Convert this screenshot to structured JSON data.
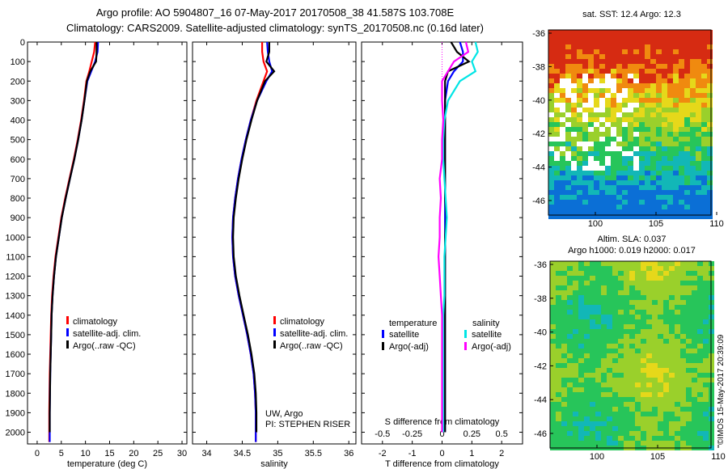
{
  "header": {
    "line1": "Argo profile: AO 5904807_16 07-May-2017 20170508_38 41.587S 103.708E",
    "line2": "Climatology: CARS2009. Satellite-adjusted climatology: synTS_20170508.nc (0.16d later)"
  },
  "credit": {
    "line1": "UW, Argo",
    "line2": "PI: STEPHEN RISER"
  },
  "stamp": "©IMOS 15-May-2017 20:39:09",
  "sst_map": {
    "title": "sat. SST: 12.4 Argo: 12.3",
    "lat_ticks": [
      "-36",
      "-38",
      "-40",
      "-42",
      "-44",
      "-46"
    ],
    "lon_ticks": [
      "100",
      "105",
      "110"
    ]
  },
  "sla_map": {
    "title1": "Altim. SLA: 0.037",
    "title2": "Argo h1000: 0.019 h2000: 0.017",
    "lat_ticks": [
      "-36",
      "-38",
      "-40",
      "-42",
      "-44",
      "-46"
    ],
    "lon_ticks": [
      "100",
      "105",
      "110"
    ]
  },
  "colors": {
    "climatology": "#ff0000",
    "satellite": "#0000ff",
    "argo": "#000000",
    "sal_satellite": "#00e5e5",
    "sal_argo": "#ff00ff"
  },
  "chart_data": [
    {
      "type": "line",
      "panel": "temperature",
      "title": "",
      "xlabel": "temperature (deg C)",
      "ylabel": "",
      "xlim": [
        -2,
        31
      ],
      "ylim": [
        2060,
        0
      ],
      "xticks": [
        0,
        5,
        10,
        15,
        20,
        25,
        30
      ],
      "yticks": [
        0,
        100,
        200,
        300,
        400,
        500,
        600,
        700,
        800,
        900,
        1000,
        1100,
        1200,
        1300,
        1400,
        1500,
        1600,
        1700,
        1800,
        1900,
        2000
      ],
      "legend_position": "lower-middle",
      "series": [
        {
          "name": "climatology",
          "color": "red",
          "x": [
            12.0,
            11.8,
            11.3,
            10.8,
            10.2,
            9.7,
            9.1,
            8.4,
            7.6,
            6.7,
            5.8,
            5.0,
            4.4,
            3.8,
            3.4,
            3.1,
            2.9,
            2.8,
            2.7,
            2.6,
            2.55,
            2.5,
            2.5
          ],
          "depth": [
            0,
            50,
            100,
            150,
            200,
            300,
            400,
            500,
            600,
            700,
            800,
            900,
            1000,
            1100,
            1200,
            1300,
            1400,
            1500,
            1600,
            1700,
            1800,
            1900,
            2050
          ]
        },
        {
          "name": "satellite-adj. clim.",
          "color": "blue",
          "x": [
            12.6,
            12.5,
            12.0,
            11.2,
            10.4,
            9.8,
            9.2,
            8.5,
            7.7,
            6.8,
            5.9,
            5.1,
            4.5,
            3.9,
            3.5,
            3.2,
            3.0,
            2.9,
            2.8,
            2.7,
            2.65,
            2.6,
            2.6
          ],
          "depth": [
            0,
            50,
            100,
            150,
            200,
            300,
            400,
            500,
            600,
            700,
            800,
            900,
            1000,
            1100,
            1200,
            1300,
            1400,
            1500,
            1600,
            1700,
            1800,
            1900,
            2050
          ]
        },
        {
          "name": "Argo(..raw -QC)",
          "color": "black",
          "x": [
            12.3,
            12.3,
            12.2,
            11.0,
            10.3,
            9.8,
            9.2,
            8.5,
            7.7,
            6.8,
            5.9,
            5.1,
            4.5,
            3.9,
            3.5,
            3.2,
            3.0,
            2.9,
            2.8,
            2.7,
            2.65,
            2.6,
            2.6
          ],
          "depth": [
            0,
            50,
            100,
            150,
            200,
            300,
            400,
            500,
            600,
            700,
            800,
            900,
            1000,
            1100,
            1200,
            1300,
            1400,
            1500,
            1600,
            1700,
            1800,
            1900,
            2000
          ]
        }
      ]
    },
    {
      "type": "line",
      "panel": "salinity",
      "title": "",
      "xlabel": "salinity",
      "ylabel": "",
      "xlim": [
        33.8,
        36.1
      ],
      "ylim": [
        2060,
        0
      ],
      "xticks": [
        34,
        34.5,
        35,
        35.5,
        36
      ],
      "legend_position": "lower-right",
      "series": [
        {
          "name": "climatology",
          "color": "red",
          "x": [
            34.78,
            34.78,
            34.8,
            34.85,
            34.8,
            34.7,
            34.62,
            34.55,
            34.49,
            34.44,
            34.4,
            34.37,
            34.36,
            34.37,
            34.4,
            34.45,
            34.51,
            34.57,
            34.62,
            34.66,
            34.68,
            34.69,
            34.69
          ],
          "depth": [
            0,
            50,
            100,
            150,
            200,
            300,
            400,
            500,
            600,
            700,
            800,
            900,
            1000,
            1100,
            1200,
            1300,
            1400,
            1500,
            1600,
            1700,
            1800,
            1900,
            2050
          ]
        },
        {
          "name": "satellite-adj. clim.",
          "color": "blue",
          "x": [
            34.85,
            34.86,
            34.88,
            34.92,
            34.84,
            34.71,
            34.62,
            34.55,
            34.49,
            34.44,
            34.4,
            34.37,
            34.36,
            34.37,
            34.4,
            34.45,
            34.51,
            34.57,
            34.62,
            34.66,
            34.68,
            34.69,
            34.69
          ],
          "depth": [
            0,
            50,
            100,
            150,
            200,
            300,
            400,
            500,
            600,
            700,
            800,
            900,
            1000,
            1100,
            1200,
            1300,
            1400,
            1500,
            1600,
            1700,
            1800,
            1900,
            2050
          ]
        },
        {
          "name": "Argo(..raw -QC)",
          "color": "black",
          "x": [
            34.88,
            34.88,
            34.84,
            34.95,
            34.82,
            34.71,
            34.63,
            34.56,
            34.5,
            34.45,
            34.41,
            34.38,
            34.37,
            34.38,
            34.41,
            34.46,
            34.52,
            34.58,
            34.63,
            34.67,
            34.69,
            34.7,
            34.7
          ],
          "depth": [
            0,
            50,
            100,
            150,
            200,
            300,
            400,
            500,
            600,
            700,
            800,
            900,
            1000,
            1100,
            1200,
            1300,
            1400,
            1500,
            1600,
            1700,
            1800,
            1900,
            2000
          ]
        }
      ]
    },
    {
      "type": "line",
      "panel": "difference",
      "title": "",
      "xlabel": "T difference from climatology",
      "xlabel_top": "S difference from climatology",
      "ylabel": "",
      "xlim": [
        -2.7,
        2.7
      ],
      "ylim": [
        2060,
        0
      ],
      "xticks": [
        -2,
        -1,
        0,
        1,
        2
      ],
      "xticks_top": [
        -0.5,
        -0.25,
        0,
        0.25,
        0.5
      ],
      "legend_temperature_title": "temperature",
      "legend_salinity_title": "salinity",
      "legend_position": "middle",
      "series": [
        {
          "name": "satellite",
          "group": "temperature",
          "color": "blue",
          "x": [
            0.6,
            0.7,
            0.7,
            0.4,
            0.2,
            0.1,
            0.1,
            0.1,
            0.1,
            0.1,
            0.1,
            0.1,
            0.1,
            0.1,
            0.1,
            0.1,
            0.1,
            0.1,
            0.1,
            0.1,
            0.1
          ],
          "depth": [
            0,
            50,
            100,
            150,
            200,
            300,
            400,
            500,
            600,
            700,
            800,
            900,
            1000,
            1100,
            1200,
            1300,
            1400,
            1500,
            1600,
            1700,
            2000
          ]
        },
        {
          "name": "Argo(-adj)",
          "group": "temperature",
          "color": "black",
          "x": [
            0.3,
            0.5,
            0.9,
            0.2,
            0.1,
            0.1,
            0.1,
            0.1,
            0.1,
            0.1,
            0.1,
            0.15,
            0.1,
            0.1,
            0.1,
            0.1,
            0.1,
            0.1,
            0.1,
            0.1,
            0.1
          ],
          "depth": [
            0,
            50,
            100,
            150,
            200,
            300,
            400,
            500,
            600,
            700,
            800,
            900,
            1000,
            1100,
            1200,
            1300,
            1400,
            1500,
            1600,
            1700,
            2000
          ]
        },
        {
          "name": "satellite",
          "group": "salinity",
          "color": "cyan",
          "x": [
            0.28,
            0.3,
            0.25,
            0.28,
            0.15,
            0.05,
            0.02,
            0.01,
            0.01,
            0.02,
            0.03,
            0.04,
            0.03,
            0.02,
            0.02,
            0.02,
            0.01,
            0.01,
            0.01,
            0.01,
            0.01
          ],
          "depth": [
            0,
            50,
            100,
            150,
            200,
            300,
            400,
            500,
            600,
            700,
            800,
            900,
            1000,
            1100,
            1200,
            1300,
            1400,
            1500,
            1600,
            1700,
            2000
          ]
        },
        {
          "name": "Argo(-adj)",
          "group": "salinity",
          "color": "magenta",
          "x": [
            0.2,
            0.22,
            0.1,
            0.05,
            0.0,
            0.0,
            0.01,
            0.0,
            0.0,
            -0.02,
            -0.01,
            -0.02,
            -0.02,
            -0.03,
            -0.02,
            -0.01,
            0.0,
            0.0,
            0.0,
            0.0,
            0.0
          ],
          "depth": [
            0,
            50,
            100,
            150,
            200,
            300,
            400,
            500,
            600,
            700,
            800,
            900,
            1000,
            1100,
            1200,
            1300,
            1400,
            1500,
            1600,
            1700,
            2000
          ]
        }
      ]
    }
  ]
}
